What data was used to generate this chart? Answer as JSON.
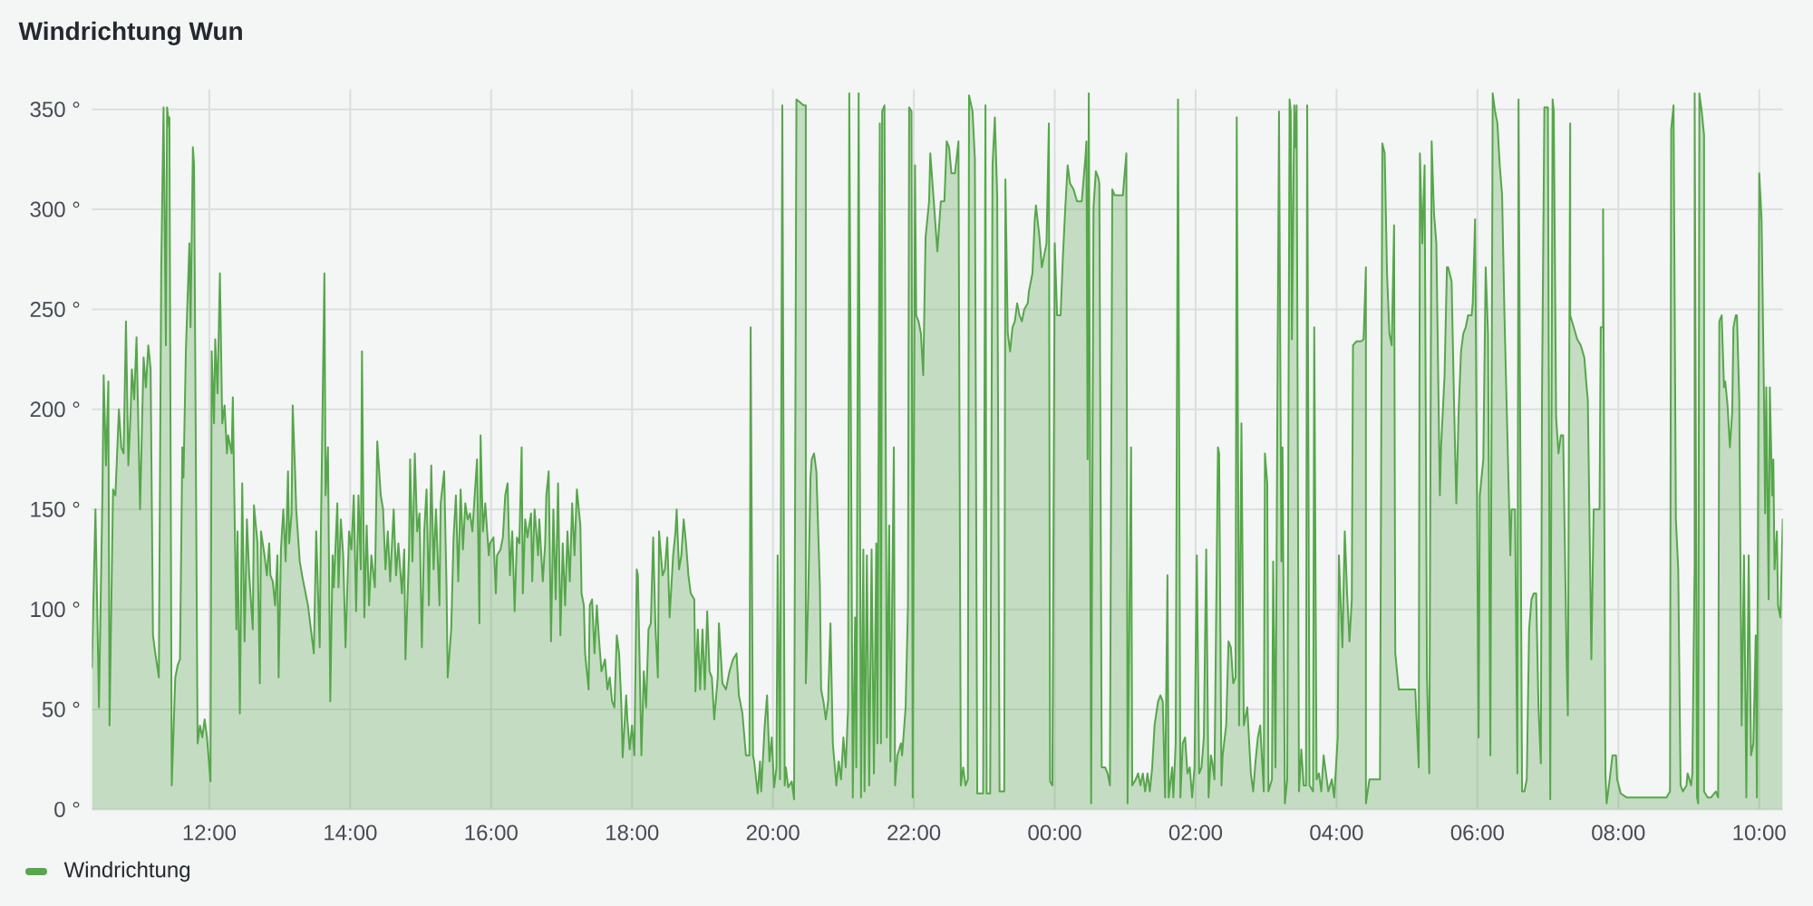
{
  "chart_data": {
    "type": "area",
    "title": "Windrichtung Wun",
    "x": [
      "2000-01-01T10:20",
      "2000-01-01T10:23",
      "2000-01-01T10:26",
      "2000-01-01T10:29",
      "2000-01-01T10:30",
      "2000-01-01T10:32",
      "2000-01-01T10:34",
      "2000-01-01T10:35",
      "2000-01-01T10:38",
      "2000-01-01T10:40",
      "2000-01-01T10:43",
      "2000-01-01T10:45",
      "2000-01-01T10:47",
      "2000-01-01T10:49",
      "2000-01-01T10:51",
      "2000-01-01T10:53",
      "2000-01-01T10:54",
      "2000-01-01T10:56",
      "2000-01-01T10:58",
      "2000-01-01T11:01",
      "2000-01-01T11:02",
      "2000-01-01T11:04",
      "2000-01-01T11:06",
      "2000-01-01T11:08",
      "2000-01-01T11:10",
      "2000-01-01T11:12",
      "2000-01-01T11:14",
      "2000-01-01T11:17",
      "2000-01-01T11:19",
      "2000-01-01T11:21",
      "2000-01-01T11:23",
      "2000-01-01T11:24",
      "2000-01-01T11:26",
      "2000-01-01T11:26",
      "2000-01-01T11:28",
      "2000-01-01T11:31",
      "2000-01-01T11:33",
      "2000-01-01T11:35",
      "2000-01-01T11:37",
      "2000-01-01T11:38",
      "2000-01-01T11:40",
      "2000-01-01T11:43",
      "2000-01-01T11:44",
      "2000-01-01T11:46",
      "2000-01-01T11:47",
      "2000-01-01T11:50",
      "2000-01-01T11:52",
      "2000-01-01T11:54",
      "2000-01-01T11:56",
      "2000-01-01T11:58",
      "2000-01-01T12:01",
      "2000-01-01T12:02",
      "2000-01-01T12:04",
      "2000-01-01T12:05",
      "2000-01-01T12:07",
      "2000-01-01T12:09",
      "2000-01-01T12:11",
      "2000-01-01T12:13",
      "2000-01-01T12:15",
      "2000-01-01T12:16",
      "2000-01-01T12:19",
      "2000-01-01T12:20",
      "2000-01-01T12:23",
      "2000-01-01T12:24",
      "2000-01-01T12:26",
      "2000-01-01T12:28",
      "2000-01-01T12:30",
      "2000-01-01T12:32",
      "2000-01-01T12:34",
      "2000-01-01T12:37",
      "2000-01-01T12:38",
      "2000-01-01T12:41",
      "2000-01-01T12:43",
      "2000-01-01T12:44",
      "2000-01-01T12:47",
      "2000-01-01T12:49",
      "2000-01-01T12:51",
      "2000-01-01T12:52",
      "2000-01-01T12:54",
      "2000-01-01T12:56",
      "2000-01-01T12:58",
      "2000-01-01T12:59",
      "2000-01-01T13:01",
      "2000-01-01T13:03",
      "2000-01-01T13:05",
      "2000-01-01T13:07",
      "2000-01-01T13:08",
      "2000-01-01T13:10",
      "2000-01-01T13:11",
      "2000-01-01T13:13",
      "2000-01-01T13:14",
      "2000-01-01T13:17",
      "2000-01-01T13:19",
      "2000-01-01T13:24",
      "2000-01-01T13:29",
      "2000-01-01T13:31",
      "2000-01-01T13:34",
      "2000-01-01T13:35",
      "2000-01-01T13:38",
      "2000-01-01T13:39",
      "2000-01-01T13:41",
      "2000-01-01T13:43",
      "2000-01-01T13:45",
      "2000-01-01T13:46",
      "2000-01-01T13:49",
      "2000-01-01T13:50",
      "2000-01-01T13:52",
      "2000-01-01T13:54",
      "2000-01-01T13:56",
      "2000-01-01T13:59",
      "2000-01-01T14:01",
      "2000-01-01T14:03",
      "2000-01-01T14:05",
      "2000-01-01T14:07",
      "2000-01-01T14:09",
      "2000-01-01T14:10",
      "2000-01-01T14:12",
      "2000-01-01T14:14",
      "2000-01-01T14:16",
      "2000-01-01T14:18",
      "2000-01-01T14:21",
      "2000-01-01T14:23",
      "2000-01-01T14:26",
      "2000-01-01T14:28",
      "2000-01-01T14:30",
      "2000-01-01T14:32",
      "2000-01-01T14:34",
      "2000-01-01T14:37",
      "2000-01-01T14:39",
      "2000-01-01T14:41",
      "2000-01-01T14:44",
      "2000-01-01T14:46",
      "2000-01-01T14:47",
      "2000-01-01T14:50",
      "2000-01-01T14:51",
      "2000-01-01T14:53",
      "2000-01-01T14:55",
      "2000-01-01T14:57",
      "2000-01-01T14:59",
      "2000-01-01T15:01",
      "2000-01-01T15:03",
      "2000-01-01T15:05",
      "2000-01-01T15:07",
      "2000-01-01T15:09",
      "2000-01-01T15:11",
      "2000-01-01T15:13",
      "2000-01-01T15:16",
      "2000-01-01T15:17",
      "2000-01-01T15:20",
      "2000-01-01T15:22",
      "2000-01-01T15:23",
      "2000-01-01T15:26",
      "2000-01-01T15:28",
      "2000-01-01T15:30",
      "2000-01-01T15:32",
      "2000-01-01T15:34",
      "2000-01-01T15:36",
      "2000-01-01T15:38",
      "2000-01-01T15:40",
      "2000-01-01T15:42",
      "2000-01-01T15:44",
      "2000-01-01T15:46",
      "2000-01-01T15:48",
      "2000-01-01T15:50",
      "2000-01-01T15:51",
      "2000-01-01T15:53",
      "2000-01-01T15:55",
      "2000-01-01T15:58",
      "2000-01-01T15:59",
      "2000-01-01T16:02",
      "2000-01-01T16:04",
      "2000-01-01T16:05",
      "2000-01-01T16:08",
      "2000-01-01T16:10",
      "2000-01-01T16:12",
      "2000-01-01T16:14",
      "2000-01-01T16:16",
      "2000-01-01T16:18",
      "2000-01-01T16:20",
      "2000-01-01T16:22",
      "2000-01-01T16:24",
      "2000-01-01T16:26",
      "2000-01-01T16:27",
      "2000-01-01T16:29",
      "2000-01-01T16:31",
      "2000-01-01T16:34",
      "2000-01-01T16:35",
      "2000-01-01T16:37",
      "2000-01-01T16:40",
      "2000-01-01T16:41",
      "2000-01-01T16:44",
      "2000-01-01T16:46",
      "2000-01-01T16:47",
      "2000-01-01T16:49",
      "2000-01-01T16:51",
      "2000-01-01T16:53",
      "2000-01-01T16:55",
      "2000-01-01T16:57",
      "2000-01-01T16:59",
      "2000-01-01T17:01",
      "2000-01-01T17:03",
      "2000-01-01T17:05",
      "2000-01-01T17:07",
      "2000-01-01T17:09",
      "2000-01-01T17:11",
      "2000-01-01T17:13",
      "2000-01-01T17:16",
      "2000-01-01T17:17",
      "2000-01-01T17:19",
      "2000-01-01T17:20",
      "2000-01-01T17:23",
      "2000-01-01T17:24",
      "2000-01-01T17:26",
      "2000-01-01T17:28",
      "2000-01-01T17:30",
      "2000-01-01T17:32",
      "2000-01-01T17:34",
      "2000-01-01T17:37",
      "2000-01-01T17:39",
      "2000-01-01T17:41",
      "2000-01-01T17:43",
      "2000-01-01T17:45",
      "2000-01-01T17:47",
      "2000-01-01T17:49",
      "2000-01-01T17:51",
      "2000-01-01T17:52",
      "2000-01-01T17:55",
      "2000-01-01T17:56",
      "2000-01-01T17:58",
      "2000-01-01T18:00",
      "2000-01-01T18:02",
      "2000-01-01T18:04",
      "2000-01-01T18:05",
      "2000-01-01T18:08",
      "2000-01-01T18:10",
      "2000-01-01T18:12",
      "2000-01-01T18:14",
      "2000-01-01T18:16",
      "2000-01-01T18:18",
      "2000-01-01T18:20",
      "2000-01-01T18:22",
      "2000-01-01T18:23",
      "2000-01-01T18:26",
      "2000-01-01T18:28",
      "2000-01-01T18:30",
      "2000-01-01T18:32",
      "2000-01-01T18:35",
      "2000-01-01T18:37",
      "2000-01-01T18:38",
      "2000-01-01T18:40",
      "2000-01-01T18:42",
      "2000-01-01T18:44",
      "2000-01-01T18:46",
      "2000-01-01T18:48",
      "2000-01-01T18:50",
      "2000-01-01T18:53",
      "2000-01-01T18:54",
      "2000-01-01T18:56",
      "2000-01-01T18:58",
      "2000-01-01T19:00",
      "2000-01-01T19:02",
      "2000-01-01T19:04",
      "2000-01-01T19:06",
      "2000-01-01T19:08",
      "2000-01-01T19:10",
      "2000-01-01T19:13",
      "2000-01-01T19:14",
      "2000-01-01T19:17",
      "2000-01-01T19:20",
      "2000-01-01T19:23",
      "2000-01-01T19:26",
      "2000-01-01T19:29",
      "2000-01-01T19:31",
      "2000-01-01T19:34",
      "2000-01-01T19:37",
      "2000-01-01T19:40",
      "2000-01-01T19:41",
      "2000-01-01T19:43",
      "2000-01-01T19:44",
      "2000-01-01T19:47",
      "2000-01-01T19:49",
      "2000-01-01T19:50",
      "2000-01-01T19:53",
      "2000-01-01T19:55",
      "2000-01-01T19:57",
      "2000-01-01T19:59",
      "2000-01-01T20:01",
      "2000-01-01T20:03",
      "2000-01-01T20:04",
      "2000-01-01T20:06",
      "2000-01-01T20:08",
      "2000-01-01T20:10",
      "2000-01-01T20:11",
      "2000-01-01T20:13",
      "2000-01-01T20:16",
      "2000-01-01T20:18",
      "2000-01-01T20:20",
      "2000-01-01T20:22",
      "2000-01-01T20:26",
      "2000-01-01T20:28",
      "2000-01-01T20:28",
      "2000-01-01T20:30",
      "2000-01-01T20:32",
      "2000-01-01T20:33",
      "2000-01-01T20:35",
      "2000-01-01T20:37",
      "2000-01-01T20:40",
      "2000-01-01T20:41",
      "2000-01-01T20:43",
      "2000-01-01T20:45",
      "2000-01-01T20:47",
      "2000-01-01T20:49",
      "2000-01-01T20:51",
      "2000-01-01T20:54",
      "2000-01-01T20:56",
      "2000-01-01T20:58",
      "2000-01-01T21:00",
      "2000-01-01T21:02",
      "2000-01-01T21:04",
      "2000-01-01T21:05",
      "2000-01-01T21:08",
      "2000-01-01T21:10",
      "2000-01-01T21:11",
      "2000-01-01T21:13",
      "2000-01-01T21:15",
      "2000-01-01T21:17",
      "2000-01-01T21:18",
      "2000-01-01T21:20",
      "2000-01-01T21:22",
      "2000-01-01T21:24",
      "2000-01-01T21:26",
      "2000-01-01T21:28",
      "2000-01-01T21:29",
      "2000-01-01T21:31",
      "2000-01-01T21:32",
      "2000-01-01T21:33",
      "2000-01-01T21:35",
      "2000-01-01T21:37",
      "2000-01-01T21:39",
      "2000-01-01T21:40",
      "2000-01-01T21:43",
      "2000-01-01T21:44",
      "2000-01-01T21:46",
      "2000-01-01T21:49",
      "2000-01-01T21:50",
      "2000-01-01T21:53",
      "2000-01-01T21:55",
      "2000-01-01T21:56",
      "2000-01-01T21:58",
      "2000-01-01T21:59",
      "2000-01-01T22:01",
      "2000-01-01T22:02",
      "2000-01-01T22:04",
      "2000-01-01T22:06",
      "2000-01-01T22:08",
      "2000-01-01T22:10",
      "2000-01-01T22:13",
      "2000-01-01T22:14",
      "2000-01-01T22:17",
      "2000-01-01T22:20",
      "2000-01-01T22:23",
      "2000-01-01T22:26",
      "2000-01-01T22:28",
      "2000-01-01T22:30",
      "2000-01-01T22:32",
      "2000-01-01T22:35",
      "2000-01-01T22:38",
      "2000-01-01T22:40",
      "2000-01-01T22:42",
      "2000-01-01T22:44",
      "2000-01-01T22:46",
      "2000-01-01T22:47",
      "2000-01-01T22:50",
      "2000-01-01T22:52",
      "2000-01-01T22:54",
      "2000-01-01T22:58",
      "2000-01-01T22:59",
      "2000-01-01T23:01",
      "2000-01-01T23:02",
      "2000-01-01T23:05",
      "2000-01-01T23:07",
      "2000-01-01T23:09",
      "2000-01-01T23:11",
      "2000-01-01T23:13",
      "2000-01-01T23:17",
      "2000-01-01T23:18",
      "2000-01-01T23:20",
      "2000-01-01T23:22",
      "2000-01-01T23:24",
      "2000-01-01T23:26",
      "2000-01-01T23:28",
      "2000-01-01T23:30",
      "2000-01-01T23:32",
      "2000-01-01T23:34",
      "2000-01-01T23:37",
      "2000-01-01T23:38",
      "2000-01-01T23:41",
      "2000-01-01T23:43",
      "2000-01-01T23:44",
      "2000-01-01T23:47",
      "2000-01-01T23:49",
      "2000-01-01T23:51",
      "2000-01-01T23:53",
      "2000-01-01T23:55",
      "2000-01-01T23:56",
      "2000-01-01T23:58",
      "2000-01-02T00:00",
      "2000-01-02T00:02",
      "2000-01-02T00:05",
      "2000-01-02T00:07",
      "2000-01-02T00:09",
      "2000-01-02T00:11",
      "2000-01-02T00:13",
      "2000-01-02T00:16",
      "2000-01-02T00:19",
      "2000-01-02T00:23",
      "2000-01-02T00:26",
      "2000-01-02T00:27",
      "2000-01-02T00:28",
      "2000-01-02T00:29",
      "2000-01-02T00:31",
      "2000-01-02T00:33",
      "2000-01-02T00:35",
      "2000-01-02T00:37",
      "2000-01-02T00:38",
      "2000-01-02T00:40",
      "2000-01-02T00:43",
      "2000-01-02T00:45",
      "2000-01-02T00:47",
      "2000-01-02T00:49",
      "2000-01-02T00:51",
      "2000-01-02T00:55",
      "2000-01-02T00:58",
      "2000-01-02T01:01",
      "2000-01-02T01:02",
      "2000-01-02T01:05",
      "2000-01-02T01:06",
      "2000-01-02T01:09",
      "2000-01-02T01:11",
      "2000-01-02T01:13",
      "2000-01-02T01:15",
      "2000-01-02T01:17",
      "2000-01-02T01:19",
      "2000-01-02T01:21",
      "2000-01-02T01:23",
      "2000-01-02T01:25",
      "2000-01-02T01:28",
      "2000-01-02T01:30",
      "2000-01-02T01:32",
      "2000-01-02T01:34",
      "2000-01-02T01:36",
      "2000-01-02T01:37",
      "2000-01-02T01:40",
      "2000-01-02T01:41",
      "2000-01-02T01:43",
      "2000-01-02T01:45",
      "2000-01-02T01:47",
      "2000-01-02T01:49",
      "2000-01-02T01:51",
      "2000-01-02T01:53",
      "2000-01-02T01:55",
      "2000-01-02T01:57",
      "2000-01-02T01:59",
      "2000-01-02T02:01",
      "2000-01-02T02:03",
      "2000-01-02T02:05",
      "2000-01-02T02:07",
      "2000-01-02T02:09",
      "2000-01-02T02:11",
      "2000-01-02T02:13",
      "2000-01-02T02:14",
      "2000-01-02T02:16",
      "2000-01-02T02:19",
      "2000-01-02T02:20",
      "2000-01-02T02:22",
      "2000-01-02T02:23",
      "2000-01-02T02:26",
      "2000-01-02T02:28",
      "2000-01-02T02:30",
      "2000-01-02T02:32",
      "2000-01-02T02:34",
      "2000-01-02T02:35",
      "2000-01-02T02:37",
      "2000-01-02T02:39",
      "2000-01-02T02:41",
      "2000-01-02T02:42",
      "2000-01-02T02:44",
      "2000-01-02T02:47",
      "2000-01-02T02:49",
      "2000-01-02T02:51",
      "2000-01-02T02:53",
      "2000-01-02T02:55",
      "2000-01-02T02:58",
      "2000-01-02T02:59",
      "2000-01-02T03:01",
      "2000-01-02T03:02",
      "2000-01-02T03:05",
      "2000-01-02T03:06",
      "2000-01-02T03:08",
      "2000-01-02T03:10",
      "2000-01-02T03:11",
      "2000-01-02T03:13",
      "2000-01-02T03:14",
      "2000-01-02T03:16",
      "2000-01-02T03:18",
      "2000-01-02T03:20",
      "2000-01-02T03:21",
      "2000-01-02T03:22",
      "2000-01-02T03:24",
      "2000-01-02T03:25",
      "2000-01-02T03:26",
      "2000-01-02T03:28",
      "2000-01-02T03:30",
      "2000-01-02T03:32",
      "2000-01-02T03:34",
      "2000-01-02T03:35",
      "2000-01-02T03:37",
      "2000-01-02T03:40",
      "2000-01-02T03:41",
      "2000-01-02T03:43",
      "2000-01-02T03:45",
      "2000-01-02T03:47",
      "2000-01-02T03:49",
      "2000-01-02T03:51",
      "2000-01-02T03:53",
      "2000-01-02T03:56",
      "2000-01-02T03:58",
      "2000-01-02T04:01",
      "2000-01-02T04:02",
      "2000-01-02T04:05",
      "2000-01-02T04:07",
      "2000-01-02T04:09",
      "2000-01-02T04:11",
      "2000-01-02T04:13",
      "2000-01-02T04:14",
      "2000-01-02T04:17",
      "2000-01-02T04:21",
      "2000-01-02T04:23",
      "2000-01-02T04:25",
      "2000-01-02T04:25",
      "2000-01-02T04:28",
      "2000-01-02T04:31",
      "2000-01-02T04:35",
      "2000-01-02T04:37",
      "2000-01-02T04:39",
      "2000-01-02T04:41",
      "2000-01-02T04:43",
      "2000-01-02T04:45",
      "2000-01-02T04:47",
      "2000-01-02T04:49",
      "2000-01-02T04:50",
      "2000-01-02T04:53",
      "2000-01-02T04:58",
      "2000-01-02T05:03",
      "2000-01-02T05:07",
      "2000-01-02T05:10",
      "2000-01-02T05:11",
      "2000-01-02T05:13",
      "2000-01-02T05:15",
      "2000-01-02T05:17",
      "2000-01-02T05:19",
      "2000-01-02T05:21",
      "2000-01-02T05:23",
      "2000-01-02T05:25",
      "2000-01-02T05:28",
      "2000-01-02T05:29",
      "2000-01-02T05:32",
      "2000-01-02T05:34",
      "2000-01-02T05:35",
      "2000-01-02T05:38",
      "2000-01-02T05:40",
      "2000-01-02T05:42",
      "2000-01-02T05:44",
      "2000-01-02T05:46",
      "2000-01-02T05:48",
      "2000-01-02T05:50",
      "2000-01-02T05:52",
      "2000-01-02T05:55",
      "2000-01-02T05:56",
      "2000-01-02T05:58",
      "2000-01-02T06:01",
      "2000-01-02T06:02",
      "2000-01-02T06:05",
      "2000-01-02T06:07",
      "2000-01-02T06:09",
      "2000-01-02T06:11",
      "2000-01-02T06:13",
      "2000-01-02T06:15",
      "2000-01-02T06:17",
      "2000-01-02T06:19",
      "2000-01-02T06:21",
      "2000-01-02T06:23",
      "2000-01-02T06:25",
      "2000-01-02T06:28",
      "2000-01-02T06:29",
      "2000-01-02T06:32",
      "2000-01-02T06:34",
      "2000-01-02T06:35",
      "2000-01-02T06:38",
      "2000-01-02T06:40",
      "2000-01-02T06:42",
      "2000-01-02T06:44",
      "2000-01-02T06:46",
      "2000-01-02T06:48",
      "2000-01-02T06:50",
      "2000-01-02T06:52",
      "2000-01-02T06:54",
      "2000-01-02T06:55",
      "2000-01-02T06:57",
      "2000-01-02T07:00",
      "2000-01-02T07:02",
      "2000-01-02T07:04",
      "2000-01-02T07:05",
      "2000-01-02T07:07",
      "2000-01-02T07:09",
      "2000-01-02T07:11",
      "2000-01-02T07:13",
      "2000-01-02T07:16",
      "2000-01-02T07:17",
      "2000-01-02T07:19",
      "2000-01-02T07:19",
      "2000-01-02T07:22",
      "2000-01-02T07:25",
      "2000-01-02T07:28",
      "2000-01-02T07:31",
      "2000-01-02T07:33",
      "2000-01-02T07:34",
      "2000-01-02T07:35",
      "2000-01-02T07:37",
      "2000-01-02T07:39",
      "2000-01-02T07:42",
      "2000-01-02T07:44",
      "2000-01-02T07:45",
      "2000-01-02T07:47",
      "2000-01-02T07:47",
      "2000-01-02T07:49",
      "2000-01-02T07:50",
      "2000-01-02T07:52",
      "2000-01-02T07:55",
      "2000-01-02T07:58",
      "2000-01-02T07:59",
      "2000-01-02T08:02",
      "2000-01-02T08:07",
      "2000-01-02T08:12",
      "2000-01-02T08:22",
      "2000-01-02T08:32",
      "2000-01-02T08:41",
      "2000-01-02T08:44",
      "2000-01-02T08:45",
      "2000-01-02T08:47",
      "2000-01-02T08:49",
      "2000-01-02T08:51",
      "2000-01-02T08:53",
      "2000-01-02T08:55",
      "2000-01-02T08:58",
      "2000-01-02T08:59",
      "2000-01-02T09:02",
      "2000-01-02T09:03",
      "2000-01-02T09:05",
      "2000-01-02T09:05",
      "2000-01-02T09:07",
      "2000-01-02T09:08",
      "2000-01-02T09:09",
      "2000-01-02T09:11",
      "2000-01-02T09:13",
      "2000-01-02T09:13",
      "2000-01-02T09:16",
      "2000-01-02T09:19",
      "2000-01-02T09:23",
      "2000-01-02T09:25",
      "2000-01-02T09:26",
      "2000-01-02T09:28",
      "2000-01-02T09:30",
      "2000-01-02T09:31",
      "2000-01-02T09:33",
      "2000-01-02T09:35",
      "2000-01-02T09:37",
      "2000-01-02T09:38",
      "2000-01-02T09:40",
      "2000-01-02T09:41",
      "2000-01-02T09:43",
      "2000-01-02T09:45",
      "2000-01-02T09:47",
      "2000-01-02T09:49",
      "2000-01-02T09:51",
      "2000-01-02T09:53",
      "2000-01-02T09:55",
      "2000-01-02T09:57",
      "2000-01-02T09:58",
      "2000-01-02T10:00",
      "2000-01-02T10:02",
      "2000-01-02T10:04",
      "2000-01-02T10:05",
      "2000-01-02T10:06",
      "2000-01-02T10:08",
      "2000-01-02T10:09",
      "2000-01-02T10:11",
      "2000-01-02T10:12",
      "2000-01-02T10:13",
      "2000-01-02T10:15",
      "2000-01-02T10:16",
      "2000-01-02T10:18",
      "2000-01-02T10:20"
    ],
    "series": [
      {
        "name": "Windrichtung",
        "color": "#56a64b",
        "values": [
          71,
          150,
          51,
          160,
          217,
          172,
          214,
          42,
          160,
          157,
          200,
          181,
          178,
          244,
          172,
          199,
          220,
          205,
          236,
          150,
          175,
          226,
          211,
          232,
          220,
          87,
          78,
          66,
          268,
          351,
          232,
          351,
          340,
          346,
          12,
          66,
          72,
          75,
          181,
          166,
          229,
          283,
          241,
          331,
          322,
          33,
          42,
          36,
          45,
          36,
          14,
          229,
          193,
          235,
          208,
          268,
          193,
          202,
          178,
          187,
          178,
          206,
          90,
          139,
          48,
          163,
          84,
          145,
          117,
          90,
          152,
          133,
          63,
          139,
          127,
          117,
          133,
          117,
          114,
          102,
          127,
          66,
          130,
          150,
          124,
          169,
          133,
          148,
          202,
          169,
          150,
          124,
          117,
          102,
          78,
          139,
          81,
          139,
          268,
          157,
          181,
          54,
          127,
          111,
          153,
          111,
          145,
          127,
          81,
          139,
          130,
          157,
          99,
          157,
          120,
          229,
          96,
          142,
          102,
          127,
          111,
          184,
          157,
          150,
          120,
          139,
          114,
          150,
          117,
          133,
          108,
          130,
          75,
          127,
          175,
          124,
          178,
          139,
          148,
          81,
          139,
          160,
          102,
          172,
          120,
          150,
          102,
          153,
          169,
          111,
          66,
          90,
          136,
          157,
          114,
          160,
          130,
          153,
          145,
          148,
          139,
          157,
          175,
          93,
          187,
          139,
          153,
          127,
          133,
          136,
          108,
          127,
          130,
          136,
          157,
          163,
          117,
          139,
          99,
          136,
          133,
          181,
          108,
          145,
          136,
          148,
          114,
          150,
          127,
          145,
          114,
          133,
          157,
          169,
          84,
          150,
          105,
          163,
          87,
          133,
          102,
          139,
          114,
          153,
          127,
          160,
          142,
          108,
          102,
          78,
          60,
          102,
          105,
          78,
          102,
          84,
          69,
          75,
          60,
          66,
          54,
          51,
          87,
          78,
          51,
          26,
          57,
          45,
          30,
          42,
          27,
          120,
          117,
          27,
          69,
          51,
          90,
          93,
          136,
          90,
          66,
          139,
          117,
          120,
          136,
          96,
          127,
          139,
          150,
          120,
          127,
          145,
          133,
          117,
          108,
          105,
          59,
          90,
          60,
          90,
          60,
          99,
          69,
          66,
          45,
          66,
          93,
          63,
          60,
          69,
          75,
          78,
          57,
          48,
          27,
          27,
          241,
          27,
          24,
          8,
          24,
          9,
          42,
          57,
          24,
          36,
          11,
          21,
          127,
          15,
          352,
          12,
          21,
          11,
          14,
          5,
          355,
          354,
          352,
          352,
          63,
          105,
          166,
          175,
          178,
          169,
          111,
          60,
          54,
          45,
          54,
          93,
          33,
          12,
          24,
          15,
          36,
          21,
          51,
          358,
          6,
          96,
          21,
          358,
          6,
          130,
          9,
          127,
          12,
          130,
          18,
          133,
          33,
          343,
          33,
          349,
          352,
          36,
          142,
          24,
          181,
          12,
          27,
          33,
          27,
          51,
          102,
          351,
          349,
          6,
          322,
          247,
          244,
          238,
          217,
          286,
          304,
          328,
          304,
          279,
          304,
          304,
          334,
          331,
          318,
          318,
          334,
          12,
          21,
          12,
          15,
          357,
          349,
          325,
          8,
          8,
          8,
          352,
          8,
          8,
          322,
          346,
          307,
          9,
          9,
          315,
          238,
          229,
          241,
          244,
          253,
          247,
          244,
          250,
          253,
          259,
          268,
          295,
          302,
          286,
          271,
          277,
          283,
          343,
          14,
          12,
          283,
          247,
          247,
          277,
          301,
          322,
          313,
          310,
          304,
          304,
          325,
          334,
          175,
          358,
          3,
          301,
          319,
          316,
          313,
          21,
          21,
          18,
          12,
          310,
          307,
          307,
          307,
          328,
          3,
          181,
          12,
          15,
          18,
          12,
          18,
          9,
          18,
          9,
          21,
          42,
          54,
          57,
          54,
          6,
          117,
          6,
          21,
          6,
          33,
          355,
          6,
          33,
          36,
          18,
          21,
          6,
          21,
          127,
          18,
          21,
          36,
          130,
          6,
          27,
          24,
          15,
          181,
          178,
          12,
          27,
          42,
          84,
          81,
          63,
          66,
          346,
          42,
          193,
          42,
          45,
          51,
          18,
          9,
          24,
          36,
          42,
          9,
          178,
          163,
          9,
          15,
          124,
          21,
          244,
          349,
          124,
          181,
          3,
          15,
          355,
          349,
          235,
          352,
          331,
          352,
          9,
          30,
          12,
          12,
          352,
          12,
          9,
          241,
          15,
          18,
          9,
          27,
          18,
          9,
          15,
          6,
          36,
          127,
          81,
          139,
          108,
          84,
          105,
          232,
          234,
          234,
          235,
          271,
          3,
          15,
          15,
          15,
          15,
          333,
          328,
          268,
          238,
          232,
          292,
          78,
          60,
          60,
          60,
          60,
          21,
          328,
          283,
          322,
          66,
          18,
          334,
          298,
          283,
          157,
          181,
          217,
          271,
          271,
          264,
          205,
          153,
          199,
          229,
          238,
          241,
          247,
          247,
          253,
          295,
          36,
          157,
          175,
          271,
          238,
          27,
          358,
          349,
          343,
          322,
          307,
          247,
          199,
          127,
          150,
          150,
          18,
          355,
          9,
          9,
          15,
          90,
          105,
          108,
          108,
          51,
          23,
          208,
          351,
          351,
          5,
          355,
          349,
          196,
          178,
          187,
          187,
          72,
          47,
          343,
          247,
          241,
          235,
          232,
          226,
          211,
          205,
          163,
          75,
          150,
          150,
          150,
          241,
          241,
          300,
          18,
          3,
          12,
          27,
          27,
          15,
          8,
          6,
          6,
          6,
          6,
          6,
          9,
          340,
          352,
          145,
          120,
          12,
          9,
          12,
          18,
          12,
          18,
          124,
          358,
          6,
          3,
          358,
          349,
          337,
          9,
          6,
          6,
          9,
          6,
          244,
          247,
          211,
          214,
          202,
          181,
          199,
          241,
          247,
          247,
          205,
          42,
          127,
          6,
          127,
          27,
          33,
          87,
          6,
          318,
          295,
          208,
          148,
          211,
          105,
          211,
          157,
          175,
          120,
          139,
          102,
          96,
          145
        ]
      }
    ],
    "xlim": [
      "2000-01-01T10:20",
      "2000-01-02T10:20"
    ],
    "ylim": [
      0,
      360
    ],
    "xticks": [
      {
        "value": "2000-01-01T12:00",
        "label": "12:00"
      },
      {
        "value": "2000-01-01T14:00",
        "label": "14:00"
      },
      {
        "value": "2000-01-01T16:00",
        "label": "16:00"
      },
      {
        "value": "2000-01-01T18:00",
        "label": "18:00"
      },
      {
        "value": "2000-01-01T20:00",
        "label": "20:00"
      },
      {
        "value": "2000-01-01T22:00",
        "label": "22:00"
      },
      {
        "value": "2000-01-02T00:00",
        "label": "00:00"
      },
      {
        "value": "2000-01-02T02:00",
        "label": "02:00"
      },
      {
        "value": "2000-01-02T04:00",
        "label": "04:00"
      },
      {
        "value": "2000-01-02T06:00",
        "label": "06:00"
      },
      {
        "value": "2000-01-02T08:00",
        "label": "08:00"
      },
      {
        "value": "2000-01-02T10:00",
        "label": "10:00"
      }
    ],
    "yticks": [
      {
        "value": 0,
        "label": "0 °"
      },
      {
        "value": 50,
        "label": "50 °"
      },
      {
        "value": 100,
        "label": "100 °"
      },
      {
        "value": 150,
        "label": "150 °"
      },
      {
        "value": 200,
        "label": "200 °"
      },
      {
        "value": 250,
        "label": "250 °"
      },
      {
        "value": 300,
        "label": "300 °"
      },
      {
        "value": 350,
        "label": "350 °"
      }
    ],
    "grid": true,
    "legend": "bottom left"
  }
}
